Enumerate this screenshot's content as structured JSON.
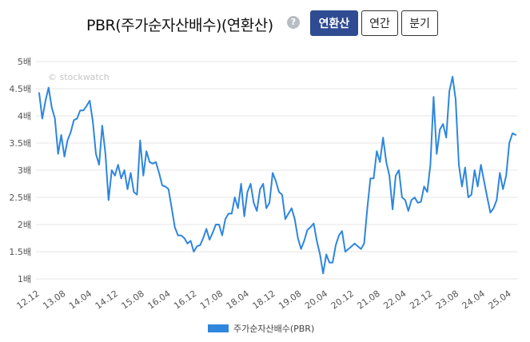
{
  "header": {
    "title": "PBR(주가순자산배수)(연환산)",
    "help_icon": "?",
    "buttons": [
      {
        "label": "연환산",
        "active": true
      },
      {
        "label": "연간",
        "active": false
      },
      {
        "label": "분기",
        "active": false
      }
    ]
  },
  "watermark": "© stockwatch",
  "colors": {
    "line": "#2e86de",
    "active_button": "#2f4b91",
    "grid": "#e6e6e6"
  },
  "chart_data": {
    "type": "line",
    "title": "PBR(주가순자산배수)(연환산)",
    "ylim": [
      1,
      5
    ],
    "y_ticks": [
      "1배",
      "1.5배",
      "2배",
      "2.5배",
      "3배",
      "3.5배",
      "4배",
      "4.5배",
      "5배"
    ],
    "x_ticks": [
      "12.12",
      "13.08",
      "14.04",
      "14.12",
      "15.08",
      "16.04",
      "16.12",
      "17.08",
      "18.04",
      "18.12",
      "19.08",
      "20.04",
      "20.12",
      "21.08",
      "22.04",
      "22.12",
      "23.08",
      "24.04",
      "25.04"
    ],
    "grid": true,
    "legend_position": "bottom",
    "series": [
      {
        "name": "주가순자산배수(PBR)",
        "values": [
          4.42,
          3.95,
          4.28,
          4.52,
          4.15,
          3.95,
          3.3,
          3.65,
          3.25,
          3.55,
          3.7,
          3.92,
          3.95,
          4.1,
          4.1,
          4.18,
          4.28,
          3.9,
          3.3,
          3.1,
          3.82,
          3.3,
          2.45,
          3.0,
          2.9,
          3.1,
          2.85,
          3.0,
          2.65,
          2.95,
          2.6,
          2.55,
          3.55,
          2.9,
          3.35,
          3.15,
          3.12,
          3.15,
          2.95,
          2.72,
          2.7,
          2.65,
          2.3,
          1.95,
          1.8,
          1.8,
          1.75,
          1.65,
          1.7,
          1.5,
          1.6,
          1.62,
          1.75,
          1.92,
          1.72,
          1.85,
          2.0,
          2.0,
          1.8,
          2.1,
          2.2,
          2.2,
          2.5,
          2.3,
          2.75,
          2.15,
          2.6,
          2.75,
          2.4,
          2.25,
          2.65,
          2.75,
          2.3,
          2.4,
          2.95,
          2.8,
          2.6,
          2.55,
          2.1,
          2.2,
          2.3,
          2.1,
          1.75,
          1.55,
          1.7,
          1.9,
          1.95,
          2.02,
          1.7,
          1.45,
          1.1,
          1.45,
          1.3,
          1.3,
          1.62,
          1.8,
          1.88,
          1.5,
          1.55,
          1.6,
          1.65,
          1.6,
          1.55,
          1.65,
          2.3,
          2.85,
          2.85,
          3.35,
          3.15,
          3.6,
          3.15,
          2.9,
          2.28,
          2.9,
          3.0,
          2.5,
          2.45,
          2.25,
          2.45,
          2.5,
          2.4,
          2.42,
          2.7,
          2.6,
          3.1,
          4.35,
          3.3,
          3.75,
          3.85,
          3.6,
          4.45,
          4.72,
          4.3,
          3.1,
          2.7,
          3.05,
          2.5,
          2.55,
          3.0,
          2.7,
          3.1,
          2.8,
          2.5,
          2.22,
          2.3,
          2.45,
          2.95,
          2.65,
          2.9,
          3.5,
          3.68,
          3.65
        ]
      }
    ]
  }
}
